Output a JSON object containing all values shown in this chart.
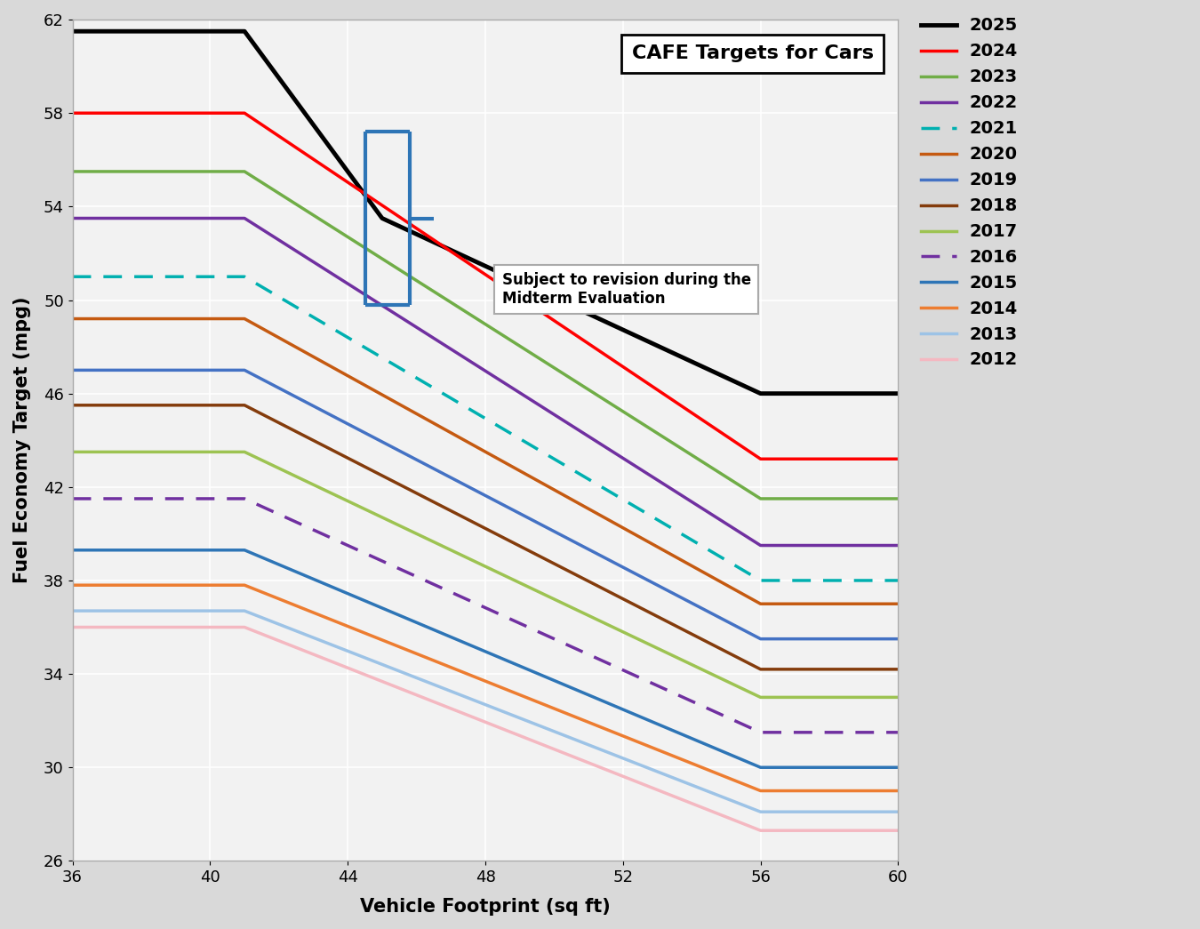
{
  "title": "CAFE Targets for Cars",
  "xlabel": "Vehicle Footprint (sq ft)",
  "ylabel": "Fuel Economy Target (mpg)",
  "xlim": [
    36,
    60
  ],
  "ylim": [
    26,
    62
  ],
  "xticks": [
    36,
    40,
    44,
    48,
    52,
    56,
    60
  ],
  "yticks": [
    26,
    30,
    34,
    38,
    42,
    46,
    50,
    54,
    58,
    62
  ],
  "background_color": "#d9d9d9",
  "plot_bg_color": "#f2f2f2",
  "annotation_text": "Subject to revision during the\nMidterm Evaluation",
  "bracket_color": "#2e75b6",
  "series": [
    {
      "year": "2025",
      "color": "#000000",
      "linestyle": "solid",
      "linewidth": 3.5,
      "x": [
        36,
        41.0,
        45.0,
        56.0,
        60
      ],
      "y": [
        61.5,
        61.5,
        53.5,
        46.0,
        46.0
      ]
    },
    {
      "year": "2024",
      "color": "#ff0000",
      "linestyle": "solid",
      "linewidth": 2.5,
      "x": [
        36,
        41.0,
        56.0,
        60
      ],
      "y": [
        58.0,
        58.0,
        43.2,
        43.2
      ]
    },
    {
      "year": "2023",
      "color": "#70ad47",
      "linestyle": "solid",
      "linewidth": 2.5,
      "x": [
        36,
        41.0,
        56.0,
        60
      ],
      "y": [
        55.5,
        55.5,
        41.5,
        41.5
      ]
    },
    {
      "year": "2022",
      "color": "#7030a0",
      "linestyle": "solid",
      "linewidth": 2.5,
      "x": [
        36,
        41.0,
        56.0,
        60
      ],
      "y": [
        53.5,
        53.5,
        39.5,
        39.5
      ]
    },
    {
      "year": "2021",
      "color": "#00b0b0",
      "linestyle": "dashed",
      "linewidth": 2.5,
      "x": [
        36,
        41.0,
        56.0,
        60
      ],
      "y": [
        51.0,
        51.0,
        38.0,
        38.0
      ]
    },
    {
      "year": "2020",
      "color": "#c55a11",
      "linestyle": "solid",
      "linewidth": 2.5,
      "x": [
        36,
        41.0,
        56.0,
        60
      ],
      "y": [
        49.2,
        49.2,
        37.0,
        37.0
      ]
    },
    {
      "year": "2019",
      "color": "#4472c4",
      "linestyle": "solid",
      "linewidth": 2.5,
      "x": [
        36,
        41.0,
        56.0,
        60
      ],
      "y": [
        47.0,
        47.0,
        35.5,
        35.5
      ]
    },
    {
      "year": "2018",
      "color": "#843c0c",
      "linestyle": "solid",
      "linewidth": 2.5,
      "x": [
        36,
        41.0,
        56.0,
        60
      ],
      "y": [
        45.5,
        45.5,
        34.2,
        34.2
      ]
    },
    {
      "year": "2017",
      "color": "#9dc352",
      "linestyle": "solid",
      "linewidth": 2.5,
      "x": [
        36,
        41.0,
        56.0,
        60
      ],
      "y": [
        43.5,
        43.5,
        33.0,
        33.0
      ]
    },
    {
      "year": "2016",
      "color": "#7030a0",
      "linestyle": "dashed",
      "linewidth": 2.5,
      "x": [
        36,
        41.0,
        56.0,
        60
      ],
      "y": [
        41.5,
        41.5,
        31.5,
        31.5
      ]
    },
    {
      "year": "2015",
      "color": "#2e75b6",
      "linestyle": "solid",
      "linewidth": 2.5,
      "x": [
        36,
        41.0,
        56.0,
        60
      ],
      "y": [
        39.3,
        39.3,
        30.0,
        30.0
      ]
    },
    {
      "year": "2014",
      "color": "#ed7d31",
      "linestyle": "solid",
      "linewidth": 2.5,
      "x": [
        36,
        41.0,
        56.0,
        60
      ],
      "y": [
        37.8,
        37.8,
        29.0,
        29.0
      ]
    },
    {
      "year": "2013",
      "color": "#9dc3e6",
      "linestyle": "solid",
      "linewidth": 2.5,
      "x": [
        36,
        41.0,
        56.0,
        60
      ],
      "y": [
        36.7,
        36.7,
        28.1,
        28.1
      ]
    },
    {
      "year": "2012",
      "color": "#f4b8c1",
      "linestyle": "solid",
      "linewidth": 2.5,
      "x": [
        36,
        41.0,
        56.0,
        60
      ],
      "y": [
        36.0,
        36.0,
        27.3,
        27.3
      ]
    }
  ]
}
